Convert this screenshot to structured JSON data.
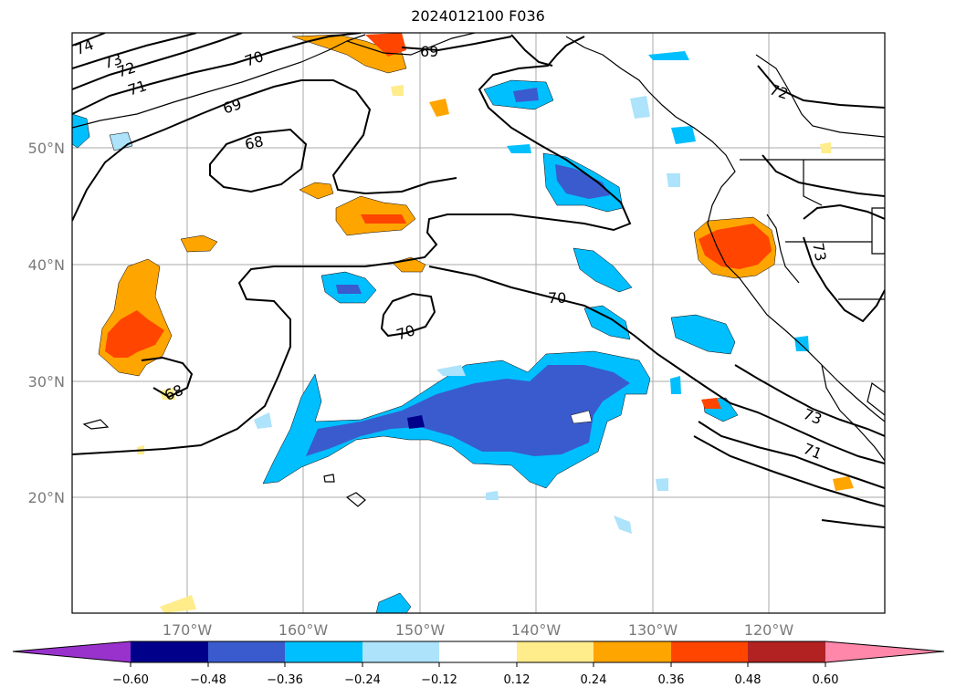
{
  "title": "2024012100 F036",
  "lat_labels": [
    "50°N",
    "40°N",
    "30°N",
    "20°N"
  ],
  "lon_labels": [
    "170°W",
    "160°W",
    "150°W",
    "140°W",
    "130°W",
    "120°W"
  ],
  "colorbar": {
    "ticks": [
      "−0.60",
      "−0.48",
      "−0.36",
      "−0.24",
      "−0.12",
      "0.12",
      "0.24",
      "0.36",
      "0.48",
      "0.60"
    ],
    "colors": [
      "#9932cc",
      "#00008b",
      "#3a5bcd",
      "#00bfff",
      "#ade3fb",
      "#ffffff",
      "#ffec8b",
      "#ffa500",
      "#ff4500",
      "#b22222",
      "#ff88aa"
    ]
  },
  "contour_labels": [
    "74",
    "73",
    "72",
    "71",
    "70",
    "69",
    "68",
    "69",
    "72",
    "70",
    "70",
    "68",
    "73",
    "71",
    "73"
  ],
  "colors": {
    "frame": "#000000",
    "grid": "#aaaaaa",
    "contour": "#000000"
  }
}
